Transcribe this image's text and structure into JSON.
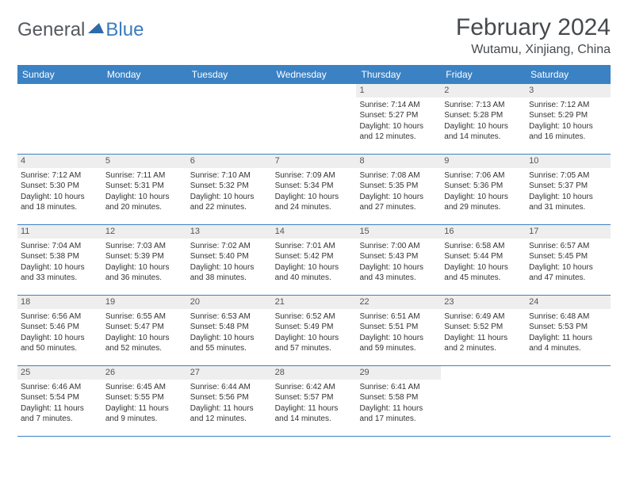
{
  "logo": {
    "general": "General",
    "blue": "Blue"
  },
  "title": "February 2024",
  "location": "Wutamu, Xinjiang, China",
  "colors": {
    "header_bar": "#3b82c4",
    "daynum_bg": "#eeeeee",
    "text": "#333333",
    "logo_gray": "#54595e",
    "logo_blue": "#3b7bbf",
    "title_color": "#464a4e"
  },
  "weekdays": [
    "Sunday",
    "Monday",
    "Tuesday",
    "Wednesday",
    "Thursday",
    "Friday",
    "Saturday"
  ],
  "weeks": [
    [
      {
        "num": "",
        "sunrise": "",
        "sunset": "",
        "daylight1": "",
        "daylight2": "",
        "empty": true
      },
      {
        "num": "",
        "sunrise": "",
        "sunset": "",
        "daylight1": "",
        "daylight2": "",
        "empty": true
      },
      {
        "num": "",
        "sunrise": "",
        "sunset": "",
        "daylight1": "",
        "daylight2": "",
        "empty": true
      },
      {
        "num": "",
        "sunrise": "",
        "sunset": "",
        "daylight1": "",
        "daylight2": "",
        "empty": true
      },
      {
        "num": "1",
        "sunrise": "Sunrise: 7:14 AM",
        "sunset": "Sunset: 5:27 PM",
        "daylight1": "Daylight: 10 hours",
        "daylight2": "and 12 minutes."
      },
      {
        "num": "2",
        "sunrise": "Sunrise: 7:13 AM",
        "sunset": "Sunset: 5:28 PM",
        "daylight1": "Daylight: 10 hours",
        "daylight2": "and 14 minutes."
      },
      {
        "num": "3",
        "sunrise": "Sunrise: 7:12 AM",
        "sunset": "Sunset: 5:29 PM",
        "daylight1": "Daylight: 10 hours",
        "daylight2": "and 16 minutes."
      }
    ],
    [
      {
        "num": "4",
        "sunrise": "Sunrise: 7:12 AM",
        "sunset": "Sunset: 5:30 PM",
        "daylight1": "Daylight: 10 hours",
        "daylight2": "and 18 minutes."
      },
      {
        "num": "5",
        "sunrise": "Sunrise: 7:11 AM",
        "sunset": "Sunset: 5:31 PM",
        "daylight1": "Daylight: 10 hours",
        "daylight2": "and 20 minutes."
      },
      {
        "num": "6",
        "sunrise": "Sunrise: 7:10 AM",
        "sunset": "Sunset: 5:32 PM",
        "daylight1": "Daylight: 10 hours",
        "daylight2": "and 22 minutes."
      },
      {
        "num": "7",
        "sunrise": "Sunrise: 7:09 AM",
        "sunset": "Sunset: 5:34 PM",
        "daylight1": "Daylight: 10 hours",
        "daylight2": "and 24 minutes."
      },
      {
        "num": "8",
        "sunrise": "Sunrise: 7:08 AM",
        "sunset": "Sunset: 5:35 PM",
        "daylight1": "Daylight: 10 hours",
        "daylight2": "and 27 minutes."
      },
      {
        "num": "9",
        "sunrise": "Sunrise: 7:06 AM",
        "sunset": "Sunset: 5:36 PM",
        "daylight1": "Daylight: 10 hours",
        "daylight2": "and 29 minutes."
      },
      {
        "num": "10",
        "sunrise": "Sunrise: 7:05 AM",
        "sunset": "Sunset: 5:37 PM",
        "daylight1": "Daylight: 10 hours",
        "daylight2": "and 31 minutes."
      }
    ],
    [
      {
        "num": "11",
        "sunrise": "Sunrise: 7:04 AM",
        "sunset": "Sunset: 5:38 PM",
        "daylight1": "Daylight: 10 hours",
        "daylight2": "and 33 minutes."
      },
      {
        "num": "12",
        "sunrise": "Sunrise: 7:03 AM",
        "sunset": "Sunset: 5:39 PM",
        "daylight1": "Daylight: 10 hours",
        "daylight2": "and 36 minutes."
      },
      {
        "num": "13",
        "sunrise": "Sunrise: 7:02 AM",
        "sunset": "Sunset: 5:40 PM",
        "daylight1": "Daylight: 10 hours",
        "daylight2": "and 38 minutes."
      },
      {
        "num": "14",
        "sunrise": "Sunrise: 7:01 AM",
        "sunset": "Sunset: 5:42 PM",
        "daylight1": "Daylight: 10 hours",
        "daylight2": "and 40 minutes."
      },
      {
        "num": "15",
        "sunrise": "Sunrise: 7:00 AM",
        "sunset": "Sunset: 5:43 PM",
        "daylight1": "Daylight: 10 hours",
        "daylight2": "and 43 minutes."
      },
      {
        "num": "16",
        "sunrise": "Sunrise: 6:58 AM",
        "sunset": "Sunset: 5:44 PM",
        "daylight1": "Daylight: 10 hours",
        "daylight2": "and 45 minutes."
      },
      {
        "num": "17",
        "sunrise": "Sunrise: 6:57 AM",
        "sunset": "Sunset: 5:45 PM",
        "daylight1": "Daylight: 10 hours",
        "daylight2": "and 47 minutes."
      }
    ],
    [
      {
        "num": "18",
        "sunrise": "Sunrise: 6:56 AM",
        "sunset": "Sunset: 5:46 PM",
        "daylight1": "Daylight: 10 hours",
        "daylight2": "and 50 minutes."
      },
      {
        "num": "19",
        "sunrise": "Sunrise: 6:55 AM",
        "sunset": "Sunset: 5:47 PM",
        "daylight1": "Daylight: 10 hours",
        "daylight2": "and 52 minutes."
      },
      {
        "num": "20",
        "sunrise": "Sunrise: 6:53 AM",
        "sunset": "Sunset: 5:48 PM",
        "daylight1": "Daylight: 10 hours",
        "daylight2": "and 55 minutes."
      },
      {
        "num": "21",
        "sunrise": "Sunrise: 6:52 AM",
        "sunset": "Sunset: 5:49 PM",
        "daylight1": "Daylight: 10 hours",
        "daylight2": "and 57 minutes."
      },
      {
        "num": "22",
        "sunrise": "Sunrise: 6:51 AM",
        "sunset": "Sunset: 5:51 PM",
        "daylight1": "Daylight: 10 hours",
        "daylight2": "and 59 minutes."
      },
      {
        "num": "23",
        "sunrise": "Sunrise: 6:49 AM",
        "sunset": "Sunset: 5:52 PM",
        "daylight1": "Daylight: 11 hours",
        "daylight2": "and 2 minutes."
      },
      {
        "num": "24",
        "sunrise": "Sunrise: 6:48 AM",
        "sunset": "Sunset: 5:53 PM",
        "daylight1": "Daylight: 11 hours",
        "daylight2": "and 4 minutes."
      }
    ],
    [
      {
        "num": "25",
        "sunrise": "Sunrise: 6:46 AM",
        "sunset": "Sunset: 5:54 PM",
        "daylight1": "Daylight: 11 hours",
        "daylight2": "and 7 minutes."
      },
      {
        "num": "26",
        "sunrise": "Sunrise: 6:45 AM",
        "sunset": "Sunset: 5:55 PM",
        "daylight1": "Daylight: 11 hours",
        "daylight2": "and 9 minutes."
      },
      {
        "num": "27",
        "sunrise": "Sunrise: 6:44 AM",
        "sunset": "Sunset: 5:56 PM",
        "daylight1": "Daylight: 11 hours",
        "daylight2": "and 12 minutes."
      },
      {
        "num": "28",
        "sunrise": "Sunrise: 6:42 AM",
        "sunset": "Sunset: 5:57 PM",
        "daylight1": "Daylight: 11 hours",
        "daylight2": "and 14 minutes."
      },
      {
        "num": "29",
        "sunrise": "Sunrise: 6:41 AM",
        "sunset": "Sunset: 5:58 PM",
        "daylight1": "Daylight: 11 hours",
        "daylight2": "and 17 minutes."
      },
      {
        "num": "",
        "sunrise": "",
        "sunset": "",
        "daylight1": "",
        "daylight2": "",
        "empty": true
      },
      {
        "num": "",
        "sunrise": "",
        "sunset": "",
        "daylight1": "",
        "daylight2": "",
        "empty": true
      }
    ]
  ]
}
